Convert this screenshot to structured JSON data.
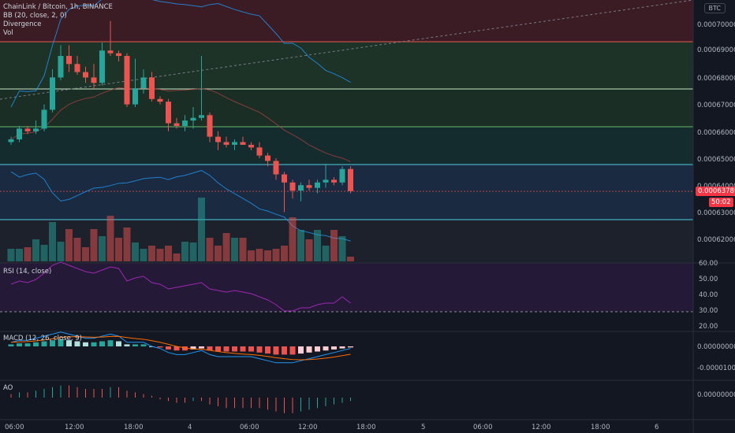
{
  "header": {
    "symbol_line": "ChainLink / Bitcoin, 1h, BINANCE",
    "indicator_bb": "BB (20, close, 2, 0)",
    "indicator_div": "Divergence",
    "indicator_vol": "Vol",
    "currency_badge": "BTC"
  },
  "price_scale": {
    "ticks": [
      "0.00070000",
      "0.00069000",
      "0.00068000",
      "0.00067000",
      "0.00066000",
      "0.00065000",
      "0.00064000",
      "0.00063000",
      "0.00062000"
    ],
    "current_price": "0.00063789",
    "countdown": "50:02"
  },
  "rsi": {
    "label": "RSI (14, close)",
    "ticks": [
      "60.00",
      "50.00",
      "40.00",
      "30.00",
      "20.00"
    ]
  },
  "macd": {
    "label": "MACD (12, 26, close, 9)",
    "ticks": [
      "0.00000000",
      "-0.00001000"
    ]
  },
  "ao": {
    "label": "AO",
    "ticks": [
      "0.00000000"
    ]
  },
  "time_axis": {
    "ticks": [
      "06:00",
      "12:00",
      "18:00",
      "4",
      "06:00",
      "12:00",
      "18:00",
      "5",
      "06:00",
      "12:00",
      "18:00",
      "6"
    ]
  },
  "colors": {
    "up": "#26a69a",
    "down": "#ef5350",
    "bg": "#131722"
  },
  "chart_data": {
    "type": "candlestick",
    "series": [
      {
        "name": "ChainLink / Bitcoin",
        "candles": [
          [
            0.000656,
            0.000658,
            0.000655,
            0.000657
          ],
          [
            0.000657,
            0.000662,
            0.000656,
            0.000661
          ],
          [
            0.000661,
            0.000662,
            0.000659,
            0.00066
          ],
          [
            0.00066,
            0.000664,
            0.000659,
            0.000661
          ],
          [
            0.000661,
            0.00067,
            0.00066,
            0.000668
          ],
          [
            0.000668,
            0.000683,
            0.000667,
            0.00068
          ],
          [
            0.00068,
            0.000692,
            0.000679,
            0.000688
          ],
          [
            0.000688,
            0.000692,
            0.000682,
            0.000685
          ],
          [
            0.000685,
            0.000688,
            0.000681,
            0.000682
          ],
          [
            0.000682,
            0.000684,
            0.000678,
            0.00068
          ],
          [
            0.00068,
            0.000685,
            0.000676,
            0.000678
          ],
          [
            0.000678,
            0.000693,
            0.000677,
            0.00069
          ],
          [
            0.00069,
            0.000701,
            0.000688,
            0.000689
          ],
          [
            0.000689,
            0.00069,
            0.000686,
            0.000688
          ],
          [
            0.000688,
            0.000689,
            0.000669,
            0.00067
          ],
          [
            0.00067,
            0.000687,
            0.000669,
            0.000676
          ],
          [
            0.000676,
            0.000683,
            0.000674,
            0.00068
          ],
          [
            0.00068,
            0.000682,
            0.000671,
            0.000672
          ],
          [
            0.000672,
            0.000673,
            0.00067,
            0.000671
          ],
          [
            0.000671,
            0.000672,
            0.00066,
            0.000663
          ],
          [
            0.000663,
            0.000665,
            0.000661,
            0.000662
          ],
          [
            0.000662,
            0.000666,
            0.00066,
            0.000664
          ],
          [
            0.000664,
            0.000669,
            0.000661,
            0.000665
          ],
          [
            0.000665,
            0.000688,
            0.000664,
            0.000666
          ],
          [
            0.000666,
            0.000667,
            0.000656,
            0.000658
          ],
          [
            0.000658,
            0.00066,
            0.000653,
            0.000656
          ],
          [
            0.000656,
            0.000658,
            0.000654,
            0.000655
          ],
          [
            0.000655,
            0.000657,
            0.000653,
            0.000656
          ],
          [
            0.000656,
            0.000658,
            0.000655,
            0.000655
          ],
          [
            0.000655,
            0.000656,
            0.000653,
            0.000654
          ],
          [
            0.000654,
            0.000656,
            0.00065,
            0.000651
          ],
          [
            0.000651,
            0.000652,
            0.000647,
            0.000649
          ],
          [
            0.000649,
            0.00065,
            0.000642,
            0.000644
          ],
          [
            0.000644,
            0.000645,
            0.00063,
            0.000641
          ],
          [
            0.000641,
            0.000642,
            0.000635,
            0.000638
          ],
          [
            0.000638,
            0.000641,
            0.000634,
            0.00064
          ],
          [
            0.00064,
            0.000642,
            0.000638,
            0.000639
          ],
          [
            0.000639,
            0.000642,
            0.000637,
            0.000641
          ],
          [
            0.000641,
            0.000648,
            0.000639,
            0.000642
          ],
          [
            0.000642,
            0.000643,
            0.00064,
            0.000641
          ],
          [
            0.000641,
            0.000647,
            0.00064,
            0.000646
          ],
          [
            0.000646,
            0.000647,
            0.000637,
            0.0006378
          ]
        ]
      }
    ],
    "volume": [
      16,
      16,
      18,
      28,
      21,
      50,
      25,
      41,
      30,
      18,
      41,
      32,
      58,
      30,
      43,
      24,
      16,
      20,
      16,
      20,
      10,
      25,
      24,
      81,
      30,
      20,
      36,
      30,
      30,
      14,
      16,
      14,
      16,
      20,
      56,
      40,
      28,
      40,
      20,
      40,
      32,
      6
    ],
    "rsi_values": [
      48,
      50,
      49,
      51,
      55,
      60,
      62,
      60,
      58,
      56,
      55,
      57,
      59,
      58,
      50,
      52,
      53,
      49,
      48,
      45,
      46,
      47,
      48,
      49,
      45,
      44,
      43,
      44,
      43,
      42,
      40,
      38,
      35,
      31,
      31,
      33,
      33,
      35,
      36,
      36,
      40,
      36
    ],
    "macd_hist": [
      2,
      3,
      3,
      4,
      5,
      6,
      7,
      6,
      5,
      4,
      4,
      5,
      6,
      5,
      2,
      2,
      2,
      0,
      -1,
      -3,
      -4,
      -4,
      -3,
      -2,
      -4,
      -5,
      -5,
      -5,
      -5,
      -5,
      -6,
      -7,
      -8,
      -8,
      -8,
      -7,
      -6,
      -5,
      -4,
      -3,
      -2,
      -1
    ],
    "ao_values": [
      2,
      3,
      3,
      4,
      5,
      6,
      7,
      7,
      6,
      5,
      5,
      5,
      6,
      6,
      4,
      3,
      2,
      1,
      -1,
      -2,
      -3,
      -3,
      -2,
      -2,
      -4,
      -5,
      -6,
      -6,
      -6,
      -6,
      -6,
      -7,
      -8,
      -9,
      -9,
      -8,
      -7,
      -6,
      -5,
      -4,
      -3,
      -2
    ]
  }
}
